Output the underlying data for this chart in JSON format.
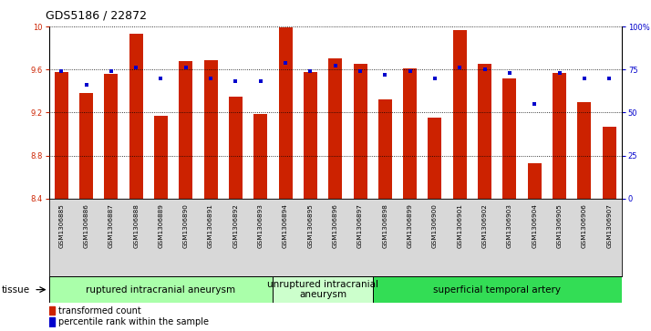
{
  "title": "GDS5186 / 22872",
  "samples": [
    "GSM1306885",
    "GSM1306886",
    "GSM1306887",
    "GSM1306888",
    "GSM1306889",
    "GSM1306890",
    "GSM1306891",
    "GSM1306892",
    "GSM1306893",
    "GSM1306894",
    "GSM1306895",
    "GSM1306896",
    "GSM1306897",
    "GSM1306898",
    "GSM1306899",
    "GSM1306900",
    "GSM1306901",
    "GSM1306902",
    "GSM1306903",
    "GSM1306904",
    "GSM1306905",
    "GSM1306906",
    "GSM1306907"
  ],
  "bar_values": [
    9.58,
    9.38,
    9.56,
    9.93,
    9.17,
    9.68,
    9.69,
    9.35,
    9.19,
    9.99,
    9.58,
    9.7,
    9.65,
    9.32,
    9.61,
    9.15,
    9.97,
    9.65,
    9.52,
    8.73,
    9.57,
    9.3,
    9.07
  ],
  "dot_values": [
    74,
    66,
    74,
    76,
    70,
    76,
    70,
    68,
    68,
    79,
    74,
    77,
    74,
    72,
    74,
    70,
    76,
    75,
    73,
    55,
    73,
    70,
    70
  ],
  "ylim_left": [
    8.4,
    10.0
  ],
  "ylim_right": [
    0,
    100
  ],
  "yticks_left": [
    8.4,
    8.8,
    9.2,
    9.6,
    10.0
  ],
  "yticks_right": [
    0,
    25,
    50,
    75,
    100
  ],
  "ytick_labels_left": [
    "8.4",
    "8.8",
    "9.2",
    "9.6",
    "10"
  ],
  "ytick_labels_right": [
    "0",
    "25",
    "50",
    "75",
    "100%"
  ],
  "bar_color": "#cc2200",
  "dot_color": "#0000cc",
  "grid_color": "#000000",
  "tissue_groups": [
    {
      "label": "ruptured intracranial aneurysm",
      "start": 0,
      "end": 9,
      "color": "#aaffaa"
    },
    {
      "label": "unruptured intracranial\naneurysm",
      "start": 9,
      "end": 13,
      "color": "#ccffcc"
    },
    {
      "label": "superficial temporal artery",
      "start": 13,
      "end": 23,
      "color": "#33dd55"
    }
  ],
  "tissue_label": "tissue",
  "legend_bar_label": "transformed count",
  "legend_dot_label": "percentile rank within the sample",
  "bar_width": 0.55,
  "tick_label_fontsize": 6.0,
  "title_fontsize": 9,
  "tissue_fontsize": 7.5,
  "legend_fontsize": 7.0
}
